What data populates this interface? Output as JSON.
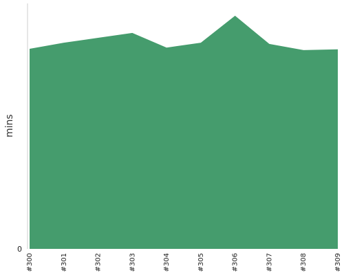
{
  "chart_data": {
    "type": "area",
    "categories": [
      "#300",
      "#301",
      "#302",
      "#303",
      "#304",
      "#305",
      "#306",
      "#307",
      "#308",
      "#309"
    ],
    "series": [
      {
        "values": [
          81.5,
          84.0,
          86.0,
          88.0,
          82.0,
          84.0,
          95.0,
          83.5,
          81.0,
          81.3
        ],
        "color": "#459c6d"
      }
    ],
    "title": "",
    "xlabel": "",
    "ylabel": "mins",
    "ylim": [
      0,
      100
    ],
    "y_tick_labels": [
      "0"
    ],
    "grid": false,
    "legend": "none"
  }
}
